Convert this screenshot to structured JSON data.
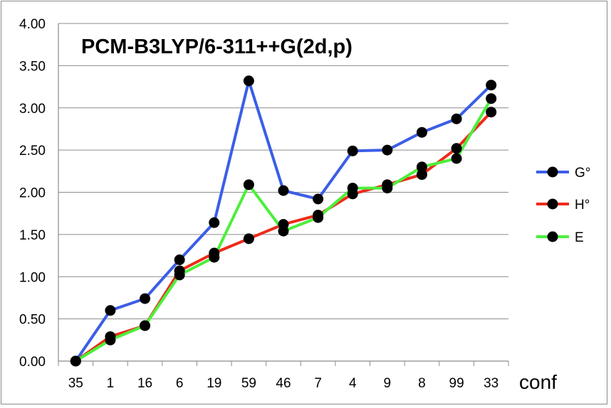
{
  "chart_data": {
    "type": "line",
    "title": "PCM-B3LYP/6-311++G(2d,p)",
    "xlabel": "conf",
    "ylabel": "",
    "categories": [
      "35",
      "1",
      "16",
      "6",
      "19",
      "59",
      "46",
      "7",
      "4",
      "9",
      "8",
      "99",
      "33"
    ],
    "ylim": [
      0,
      4
    ],
    "yticks": [
      "0.00",
      "0.50",
      "1.00",
      "1.50",
      "2.00",
      "2.50",
      "3.00",
      "3.50",
      "4.00"
    ],
    "grid": true,
    "legend_position": "right",
    "series": [
      {
        "name": "G°",
        "color": "#3b5ee6",
        "values": [
          0.0,
          0.6,
          0.74,
          1.2,
          1.64,
          3.32,
          2.02,
          1.92,
          2.49,
          2.5,
          2.71,
          2.87,
          3.27
        ]
      },
      {
        "name": "H°",
        "color": "#ee2a1a",
        "values": [
          0.0,
          0.29,
          0.42,
          1.07,
          1.28,
          1.45,
          1.62,
          1.73,
          1.98,
          2.09,
          2.21,
          2.52,
          2.95
        ]
      },
      {
        "name": "E",
        "color": "#4cef3b",
        "values": [
          0.0,
          0.25,
          0.42,
          1.02,
          1.23,
          2.09,
          1.54,
          1.7,
          2.05,
          2.05,
          2.3,
          2.4,
          3.11
        ]
      }
    ]
  }
}
